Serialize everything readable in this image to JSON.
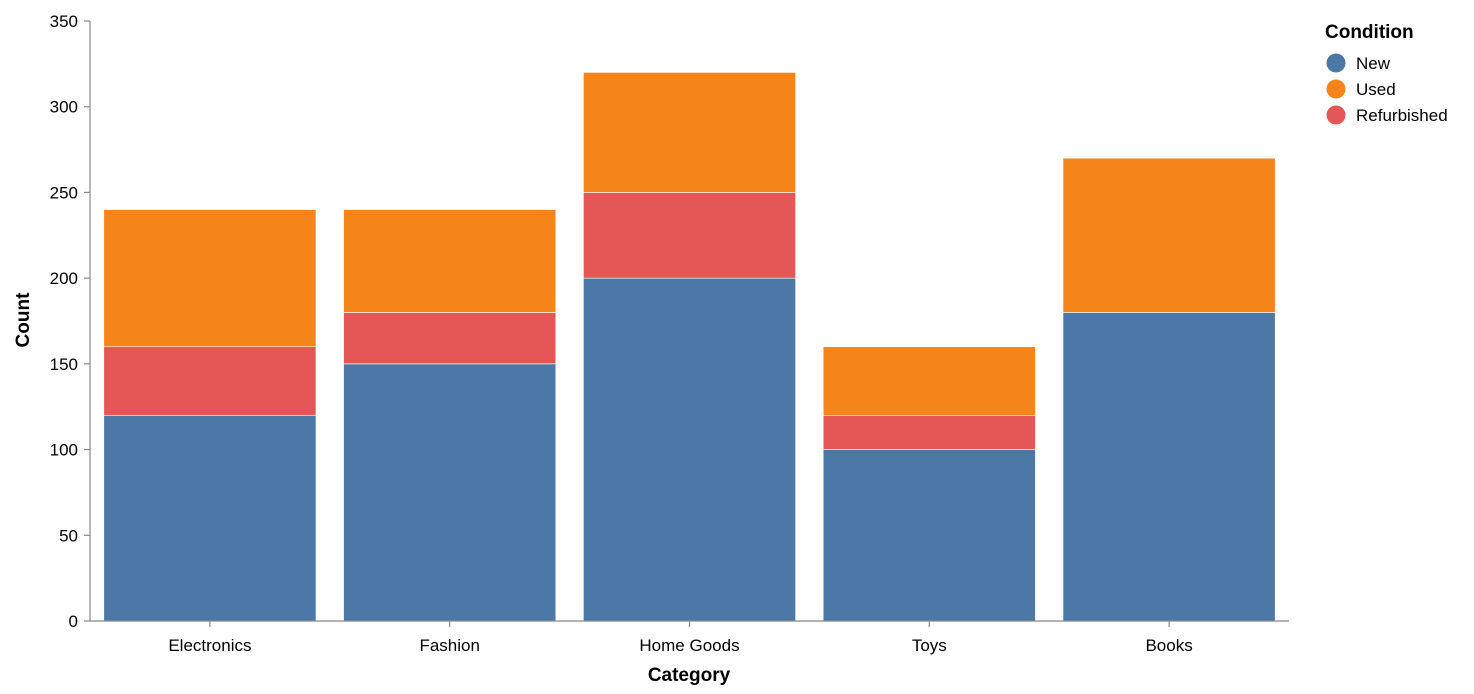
{
  "chart_data": {
    "type": "bar",
    "stacked": true,
    "categories": [
      "Electronics",
      "Fashion",
      "Home Goods",
      "Toys",
      "Books"
    ],
    "series": [
      {
        "name": "New",
        "color": "#4c78a8",
        "values": [
          120,
          150,
          200,
          100,
          180
        ]
      },
      {
        "name": "Refurbished",
        "color": "#e45756",
        "values": [
          40,
          30,
          50,
          20,
          0
        ]
      },
      {
        "name": "Used",
        "color": "#f58518",
        "values": [
          80,
          60,
          70,
          40,
          90
        ]
      }
    ],
    "xlabel": "Category",
    "ylabel": "Count",
    "ylim": [
      0,
      350
    ],
    "yticks": [
      0,
      50,
      100,
      150,
      200,
      250,
      300,
      350
    ],
    "grid": false,
    "legend": {
      "title": "Condition",
      "position": "top-right",
      "items": [
        {
          "label": "New",
          "color": "#4c78a8"
        },
        {
          "label": "Used",
          "color": "#f58518"
        },
        {
          "label": "Refurbished",
          "color": "#e45756"
        }
      ]
    }
  }
}
